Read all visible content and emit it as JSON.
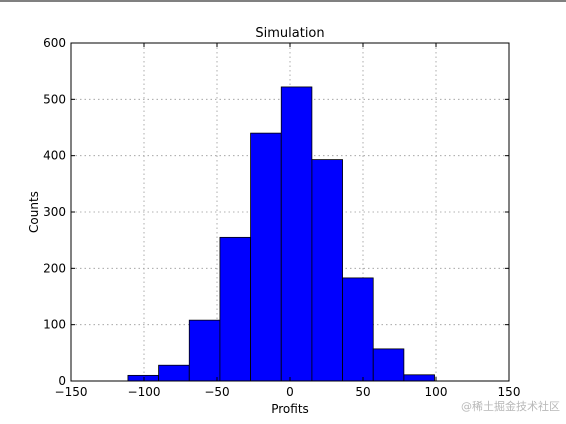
{
  "chart_data": {
    "type": "bar",
    "title": "Simulation",
    "xlabel": "Profits",
    "ylabel": "Counts",
    "xlim": [
      -150,
      150
    ],
    "ylim": [
      0,
      600
    ],
    "xticks": [
      -150,
      -100,
      -50,
      0,
      50,
      100,
      150
    ],
    "yticks": [
      0,
      100,
      200,
      300,
      400,
      500,
      600
    ],
    "xtick_labels": [
      "−150",
      "−100",
      "−50",
      "0",
      "50",
      "100",
      "150"
    ],
    "ytick_labels": [
      "0",
      "100",
      "200",
      "300",
      "400",
      "500",
      "600"
    ],
    "grid": true,
    "bar_color": "#0000ff",
    "bins": [
      {
        "start": -111,
        "end": -90,
        "count": 10
      },
      {
        "start": -90,
        "end": -69,
        "count": 28
      },
      {
        "start": -69,
        "end": -48,
        "count": 108
      },
      {
        "start": -48,
        "end": -27,
        "count": 255
      },
      {
        "start": -27,
        "end": -6,
        "count": 440
      },
      {
        "start": -6,
        "end": 15,
        "count": 522
      },
      {
        "start": 15,
        "end": 36,
        "count": 393
      },
      {
        "start": 36,
        "end": 57,
        "count": 183
      },
      {
        "start": 57,
        "end": 78,
        "count": 57
      },
      {
        "start": 78,
        "end": 99,
        "count": 11
      }
    ]
  },
  "watermark": "@稀土掘金技术社区"
}
